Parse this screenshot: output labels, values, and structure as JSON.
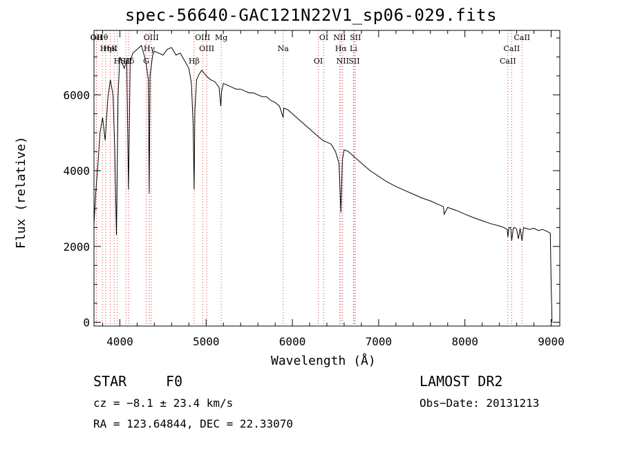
{
  "chart_data": {
    "type": "line",
    "title": "spec-56640-GAC121N22V1_sp06-029.fits",
    "xlabel": "Wavelength (Å)",
    "ylabel": "Flux (relative)",
    "xlim": [
      3700,
      9100
    ],
    "ylim": [
      -100,
      7700
    ],
    "xticks": [
      "4000",
      "5000",
      "6000",
      "7000",
      "8000",
      "9000"
    ],
    "yticks": [
      "0",
      "2000",
      "4000",
      "6000"
    ],
    "grid": false,
    "x": [
      3700,
      3720,
      3750,
      3770,
      3800,
      3830,
      3860,
      3890,
      3920,
      3940,
      3960,
      3980,
      4000,
      4050,
      4080,
      4100,
      4120,
      4150,
      4200,
      4250,
      4300,
      4330,
      4340,
      4350,
      4380,
      4400,
      4450,
      4500,
      4550,
      4600,
      4650,
      4700,
      4750,
      4800,
      4830,
      4850,
      4861,
      4870,
      4890,
      4920,
      4950,
      5000,
      5050,
      5100,
      5150,
      5170,
      5180,
      5200,
      5250,
      5300,
      5350,
      5400,
      5450,
      5500,
      5550,
      5600,
      5650,
      5700,
      5750,
      5800,
      5850,
      5893,
      5900,
      5950,
      6000,
      6050,
      6100,
      6150,
      6200,
      6250,
      6300,
      6350,
      6400,
      6450,
      6500,
      6540,
      6563,
      6580,
      6600,
      6650,
      6700,
      6750,
      6800,
      6900,
      7000,
      7100,
      7200,
      7300,
      7400,
      7500,
      7600,
      7700,
      7750,
      7760,
      7800,
      7900,
      8000,
      8100,
      8200,
      8300,
      8400,
      8450,
      8490,
      8498,
      8510,
      8530,
      8542,
      8560,
      8580,
      8600,
      8620,
      8640,
      8662,
      8680,
      8700,
      8750,
      8800,
      8850,
      8900,
      8950,
      8990,
      9000,
      9010
    ],
    "y": [
      2600,
      3400,
      4300,
      5000,
      5400,
      4800,
      5900,
      6400,
      6000,
      4600,
      2300,
      6000,
      7000,
      6700,
      6900,
      3500,
      6900,
      7100,
      7200,
      7300,
      6900,
      6400,
      3400,
      6500,
      7050,
      7150,
      7100,
      7050,
      7200,
      7250,
      7050,
      7100,
      6900,
      6700,
      6300,
      5200,
      3500,
      5600,
      6400,
      6550,
      6650,
      6500,
      6400,
      6350,
      6200,
      5700,
      6100,
      6300,
      6250,
      6200,
      6150,
      6150,
      6100,
      6050,
      6050,
      6000,
      5950,
      5950,
      5850,
      5800,
      5700,
      5400,
      5650,
      5600,
      5500,
      5400,
      5300,
      5200,
      5100,
      5000,
      4900,
      4800,
      4750,
      4700,
      4500,
      4200,
      2900,
      4300,
      4550,
      4500,
      4400,
      4300,
      4200,
      4000,
      3850,
      3700,
      3580,
      3480,
      3380,
      3280,
      3200,
      3100,
      3050,
      2850,
      3030,
      2950,
      2850,
      2760,
      2680,
      2600,
      2540,
      2500,
      2450,
      2250,
      2500,
      2500,
      2150,
      2480,
      2500,
      2450,
      2200,
      2480,
      2150,
      2500,
      2480,
      2450,
      2480,
      2420,
      2450,
      2400,
      2350,
      1000,
      0
    ],
    "lines": [
      {
        "label": "Hθ",
        "wave": 3798
      },
      {
        "label": "K",
        "wave": 3934
      },
      {
        "label": "Hδ",
        "wave": 4102
      },
      {
        "label": "OII",
        "wave": 3727
      },
      {
        "label": "HeI",
        "wave": 3889
      },
      {
        "label": "SII",
        "wave": 4070
      },
      {
        "label": "OII",
        "wave": 3729
      },
      {
        "label": "Hη",
        "wave": 3835
      },
      {
        "label": "H",
        "wave": 3969
      },
      {
        "label": "OIII",
        "wave": 4363
      },
      {
        "label": "Hγ",
        "wave": 4341
      },
      {
        "label": "G",
        "wave": 4305
      },
      {
        "label": "OIII",
        "wave": 4959
      },
      {
        "label": "OIII",
        "wave": 5007
      },
      {
        "label": "Hβ",
        "wave": 4861
      },
      {
        "label": "Mg",
        "wave": 5175
      },
      {
        "label": "Na",
        "wave": 5893
      },
      {
        "label": "OI",
        "wave": 6300
      },
      {
        "label": "OI",
        "wave": 6364
      },
      {
        "label": "Hα",
        "wave": 6563
      },
      {
        "label": "SII",
        "wave": 6716
      },
      {
        "label": "NII",
        "wave": 6548
      },
      {
        "label": "Li",
        "wave": 6708
      },
      {
        "label": "NII",
        "wave": 6583
      },
      {
        "label": "SII",
        "wave": 6731
      },
      {
        "label": "CaII",
        "wave": 8542
      },
      {
        "label": "CaII",
        "wave": 8498
      },
      {
        "label": "CaII",
        "wave": 8662
      }
    ]
  },
  "info": {
    "objclass": "STAR",
    "subclass": "F0",
    "survey": "LAMOST DR2",
    "cz": "cz = −8.1 ± 23.4 km/s",
    "obsdate": "Obs−Date: 20131213",
    "radec": "RA = 123.64844, DEC =  22.33070"
  }
}
